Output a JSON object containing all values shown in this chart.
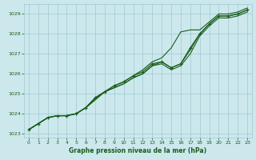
{
  "title": "Graphe pression niveau de la mer (hPa)",
  "bg_color": "#cce8ed",
  "grid_color": "#9dc8cf",
  "line_color": "#1a5c1a",
  "text_color": "#1a5c1a",
  "xlim": [
    -0.5,
    23.5
  ],
  "ylim": [
    1022.8,
    1029.5
  ],
  "yticks": [
    1023,
    1024,
    1025,
    1026,
    1027,
    1028,
    1029
  ],
  "xticks": [
    0,
    1,
    2,
    3,
    4,
    5,
    6,
    7,
    8,
    9,
    10,
    11,
    12,
    13,
    14,
    15,
    16,
    17,
    18,
    19,
    20,
    21,
    22,
    23
  ],
  "series": [
    [
      1023.2,
      1023.5,
      1023.8,
      1023.9,
      1023.9,
      1024.0,
      1024.3,
      1024.7,
      1025.1,
      1025.3,
      1025.5,
      1025.8,
      1026.0,
      1026.4,
      1026.5,
      1026.2,
      1026.4,
      1027.0,
      1027.9,
      1028.4,
      1028.8,
      1028.8,
      1028.9,
      1029.1
    ],
    [
      1023.2,
      1023.5,
      1023.8,
      1023.9,
      1023.9,
      1024.0,
      1024.3,
      1024.7,
      1025.1,
      1025.3,
      1025.5,
      1025.8,
      1026.0,
      1026.4,
      1026.6,
      1026.3,
      1026.5,
      1027.2,
      1028.0,
      1028.5,
      1028.9,
      1028.9,
      1029.0,
      1029.2
    ]
  ],
  "main_series": [
    1023.2,
    1023.5,
    1023.8,
    1023.9,
    1023.9,
    1024.0,
    1024.3,
    1024.8,
    1025.1,
    1025.4,
    1025.6,
    1025.9,
    1026.1,
    1026.5,
    1026.6,
    1026.3,
    1026.5,
    1027.3,
    1028.0,
    1028.5,
    1028.9,
    1028.9,
    1029.0,
    1029.2
  ],
  "upper_series": [
    1023.2,
    1023.5,
    1023.8,
    1023.9,
    1023.9,
    1024.0,
    1024.3,
    1024.8,
    1025.1,
    1025.4,
    1025.6,
    1025.9,
    1026.2,
    1026.6,
    1026.8,
    1027.3,
    1028.1,
    1028.2,
    1028.2,
    1028.6,
    1029.0,
    1029.0,
    1029.1,
    1029.3
  ]
}
